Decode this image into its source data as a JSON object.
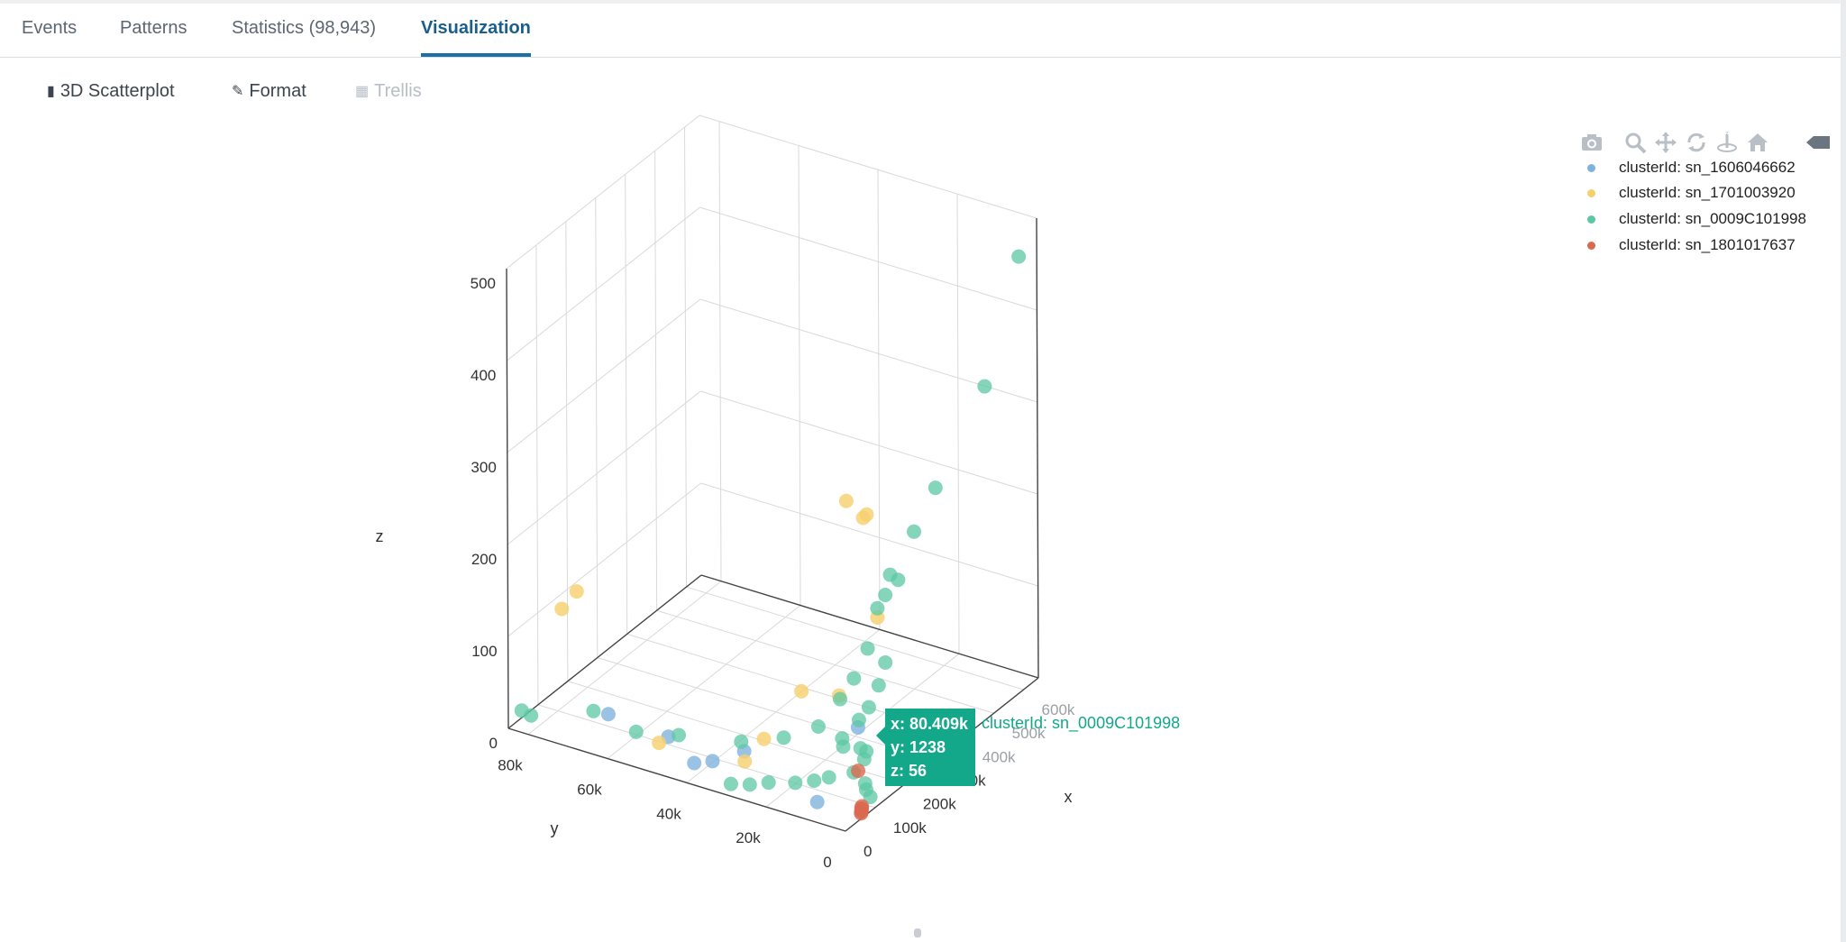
{
  "tabs": [
    {
      "label": "Events"
    },
    {
      "label": "Patterns"
    },
    {
      "label": "Statistics (98,943)"
    },
    {
      "label": "Visualization",
      "active": true
    }
  ],
  "toolbar": {
    "scatter_label": "3D Scatterplot",
    "format_label": "Format",
    "trellis_label": "Trellis"
  },
  "modebar": [
    "camera-icon",
    "zoom-icon",
    "pan-icon",
    "orbit-rotation-icon",
    "turntable-rotation-icon",
    "home-icon",
    "tooltip-toggle-icon"
  ],
  "legend": [
    {
      "label": "clusterId: sn_1606046662",
      "color": "#7fb3dd"
    },
    {
      "label": "clusterId: sn_1701003920",
      "color": "#f6cf6d"
    },
    {
      "label": "clusterId: sn_0009C101998",
      "color": "#5cc7a3"
    },
    {
      "label": "clusterId: sn_1801017637",
      "color": "#d9694f"
    }
  ],
  "tooltip": {
    "x_text": "x: 80.409k",
    "y_text": "y: 1238",
    "z_text": "z: 56",
    "series_text": "clusterId: sn_0009C101998"
  },
  "chart_data": {
    "type": "scatter",
    "title": "",
    "xlabel": "x",
    "ylabel": "y",
    "zlabel": "z",
    "x_ticks": [
      "0",
      "100k",
      "200k",
      "300k",
      "400k",
      "500k",
      "600k"
    ],
    "y_ticks": [
      "0",
      "20k",
      "40k",
      "60k",
      "80k"
    ],
    "z_ticks": [
      "0",
      "100",
      "200",
      "300",
      "400",
      "500"
    ],
    "xlim": [
      0,
      650000
    ],
    "ylim": [
      0,
      85000
    ],
    "zlim": [
      0,
      500
    ],
    "legend_position": "top-right",
    "grid": true,
    "series": [
      {
        "name": "clusterId: sn_1606046662",
        "points": [
          [
            12000,
            8000,
            18
          ],
          [
            25000,
            40000,
            15
          ],
          [
            30000,
            62000,
            38
          ],
          [
            45000,
            48000,
            28
          ],
          [
            60000,
            30000,
            32
          ],
          [
            110000,
            5000,
            78
          ],
          [
            20000,
            35000,
            25
          ]
        ]
      },
      {
        "name": "clusterId: sn_1701003920",
        "points": [
          [
            5000,
            68000,
            170
          ],
          [
            8000,
            72000,
            145
          ],
          [
            90000,
            2000,
            315
          ],
          [
            95000,
            1500,
            318
          ],
          [
            120000,
            20000,
            95
          ],
          [
            60000,
            25000,
            52
          ],
          [
            140000,
            10000,
            310
          ],
          [
            150000,
            3000,
            190
          ],
          [
            35000,
            28000,
            30
          ],
          [
            100000,
            9000,
            110
          ],
          [
            40000,
            50000,
            20
          ]
        ]
      },
      {
        "name": "clusterId: sn_0009C101998",
        "points": [
          [
            80409,
            1238,
            56
          ],
          [
            600000,
            800,
            470
          ],
          [
            480000,
            500,
            360
          ],
          [
            320000,
            1000,
            290
          ],
          [
            250000,
            1200,
            260
          ],
          [
            200000,
            1500,
            220
          ],
          [
            180000,
            2000,
            230
          ],
          [
            170000,
            2500,
            210
          ],
          [
            150000,
            3000,
            200
          ],
          [
            130000,
            4000,
            160
          ],
          [
            110000,
            6000,
            130
          ],
          [
            90000,
            8000,
            110
          ],
          [
            70000,
            12000,
            80
          ],
          [
            60000,
            20000,
            60
          ],
          [
            50000,
            30000,
            45
          ],
          [
            40000,
            45000,
            35
          ],
          [
            30000,
            55000,
            28
          ],
          [
            20000,
            65000,
            40
          ],
          [
            10000,
            80000,
            18
          ],
          [
            5000,
            82000,
            22
          ],
          [
            100000,
            4000,
            90
          ],
          [
            120000,
            3000,
            100
          ],
          [
            140000,
            2000,
            120
          ],
          [
            160000,
            1800,
            140
          ],
          [
            60000,
            5000,
            70
          ],
          [
            70000,
            6000,
            75
          ],
          [
            85000,
            2500,
            65
          ],
          [
            95000,
            1800,
            60
          ],
          [
            75000,
            3500,
            40
          ],
          [
            65000,
            9000,
            30
          ],
          [
            55000,
            12000,
            25
          ],
          [
            45000,
            16000,
            20
          ],
          [
            35000,
            22000,
            15
          ],
          [
            25000,
            26000,
            10
          ],
          [
            15000,
            30000,
            8
          ],
          [
            80000,
            1000,
            30
          ],
          [
            90000,
            1500,
            20
          ],
          [
            100000,
            1200,
            10
          ]
        ]
      },
      {
        "name": "clusterId: sn_1801017637",
        "points": [
          [
            60000,
            500,
            5
          ],
          [
            62000,
            600,
            8
          ],
          [
            64000,
            700,
            6
          ],
          [
            58000,
            400,
            4
          ],
          [
            66000,
            800,
            9
          ],
          [
            70000,
            2000,
            45
          ]
        ]
      }
    ]
  }
}
